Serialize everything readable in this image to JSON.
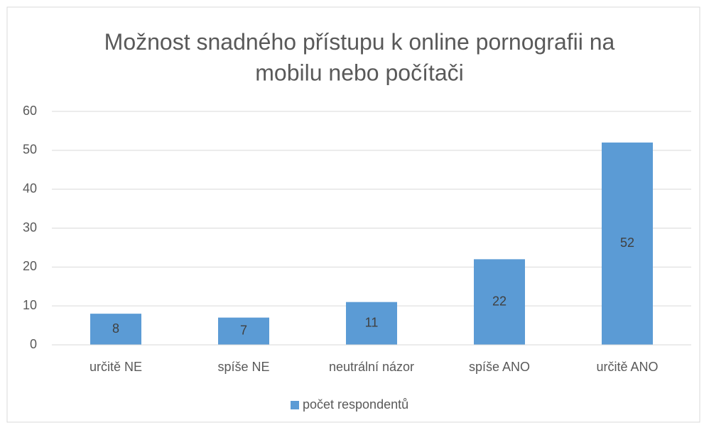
{
  "chart_data": {
    "type": "bar",
    "title": "Možnost snadného přístupu k online pornografii na mobilu nebo počítači",
    "categories": [
      "určitě NE",
      "spíše NE",
      "neutrální názor",
      "spíše ANO",
      "určitě ANO"
    ],
    "series": [
      {
        "name": "počet respondentů",
        "color": "#5b9bd5",
        "values": [
          8,
          7,
          11,
          22,
          52
        ]
      }
    ],
    "ylim": [
      0,
      60
    ],
    "yticks": [
      0,
      10,
      20,
      30,
      40,
      50,
      60
    ],
    "grid": true,
    "legend": "bottom"
  }
}
